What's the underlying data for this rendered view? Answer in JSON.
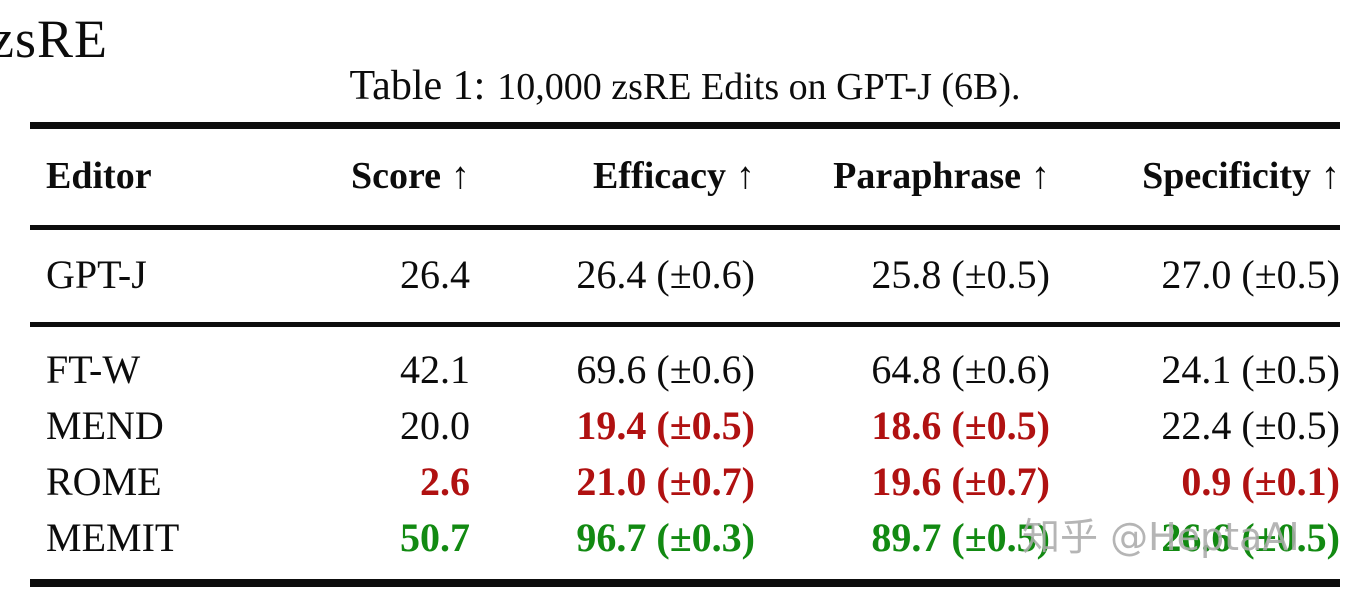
{
  "corner_label": "zsRE",
  "caption": {
    "label": "Table 1:",
    "text": "10,000 zsRE Edits on GPT-J (6B)."
  },
  "colors": {
    "text": "#0c0c0c",
    "rule": "#0d0d0d",
    "emphasis_bad": "#b01111",
    "emphasis_good": "#128a12",
    "watermark": "#ababab"
  },
  "table": {
    "headers": [
      {
        "label": "Editor",
        "arrow": ""
      },
      {
        "label": "Score",
        "arrow": "↑"
      },
      {
        "label": "Efficacy",
        "arrow": "↑"
      },
      {
        "label": "Paraphrase",
        "arrow": "↑"
      },
      {
        "label": "Specificity",
        "arrow": "↑"
      }
    ],
    "rows": [
      {
        "editor": "GPT-J",
        "group": "baseline",
        "cells": [
          {
            "text": "26.4",
            "style": "normal"
          },
          {
            "text": "26.4 (±0.6)",
            "style": "normal"
          },
          {
            "text": "25.8 (±0.5)",
            "style": "normal"
          },
          {
            "text": "27.0 (±0.5)",
            "style": "normal"
          }
        ]
      },
      {
        "editor": "FT-W",
        "group": "editors",
        "cells": [
          {
            "text": "42.1",
            "style": "normal"
          },
          {
            "text": "69.6 (±0.6)",
            "style": "normal"
          },
          {
            "text": "64.8 (±0.6)",
            "style": "normal"
          },
          {
            "text": "24.1 (±0.5)",
            "style": "normal"
          }
        ]
      },
      {
        "editor": "MEND",
        "group": "editors",
        "cells": [
          {
            "text": "20.0",
            "style": "normal"
          },
          {
            "text": "19.4 (±0.5)",
            "style": "bad"
          },
          {
            "text": "18.6 (±0.5)",
            "style": "bad"
          },
          {
            "text": "22.4 (±0.5)",
            "style": "normal"
          }
        ]
      },
      {
        "editor": "ROME",
        "group": "editors",
        "cells": [
          {
            "text": "2.6",
            "style": "bad"
          },
          {
            "text": "21.0 (±0.7)",
            "style": "bad"
          },
          {
            "text": "19.6 (±0.7)",
            "style": "bad"
          },
          {
            "text": "0.9 (±0.1)",
            "style": "bad"
          }
        ]
      },
      {
        "editor": "MEMIT",
        "group": "editors",
        "cells": [
          {
            "text": "50.7",
            "style": "good"
          },
          {
            "text": "96.7 (±0.3)",
            "style": "good"
          },
          {
            "text": "89.7 (±0.5)",
            "style": "good"
          },
          {
            "text": "26.6 (±0.5)",
            "style": "good"
          }
        ]
      }
    ]
  },
  "watermark": "知乎 @HeptaAI"
}
